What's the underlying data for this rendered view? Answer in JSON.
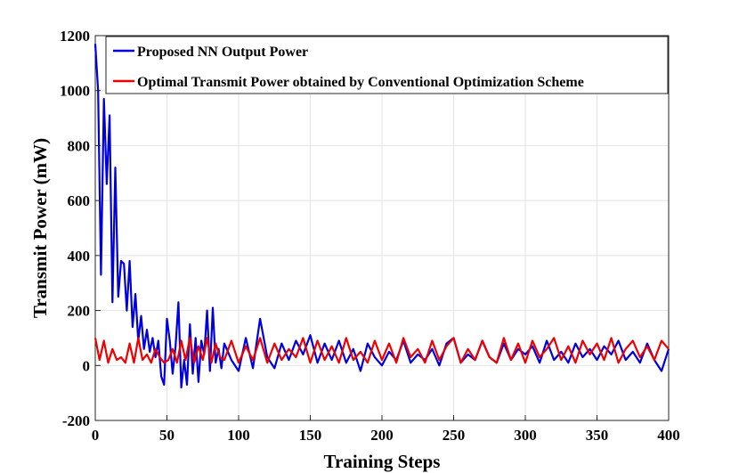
{
  "chart_data": {
    "type": "line",
    "title": "",
    "xlabel": "Training Steps",
    "ylabel": "Transmit Power (mW)",
    "xlim": [
      0,
      400
    ],
    "ylim": [
      -200,
      1200
    ],
    "xticks": [
      0,
      50,
      100,
      150,
      200,
      250,
      300,
      350,
      400
    ],
    "yticks": [
      -200,
      0,
      200,
      400,
      600,
      800,
      1000,
      1200
    ],
    "grid": true,
    "legend_position": "top-right",
    "series": [
      {
        "name": "Proposed NN Output Power",
        "color": "#0000dd",
        "x": [
          0,
          2,
          4,
          6,
          8,
          10,
          12,
          14,
          16,
          18,
          20,
          22,
          24,
          26,
          28,
          30,
          32,
          34,
          36,
          38,
          40,
          42,
          44,
          46,
          48,
          50,
          52,
          54,
          56,
          58,
          60,
          62,
          64,
          66,
          68,
          70,
          72,
          74,
          76,
          78,
          80,
          82,
          84,
          86,
          88,
          90,
          95,
          100,
          105,
          110,
          115,
          120,
          125,
          130,
          135,
          140,
          145,
          150,
          155,
          160,
          165,
          170,
          175,
          180,
          185,
          190,
          195,
          200,
          205,
          210,
          215,
          220,
          225,
          230,
          235,
          240,
          245,
          250,
          255,
          260,
          265,
          270,
          275,
          280,
          285,
          290,
          295,
          300,
          305,
          310,
          315,
          320,
          325,
          330,
          335,
          340,
          345,
          350,
          355,
          360,
          365,
          370,
          375,
          380,
          385,
          390,
          395,
          400
        ],
        "y": [
          1170,
          1000,
          330,
          970,
          660,
          910,
          230,
          720,
          250,
          380,
          370,
          200,
          380,
          140,
          260,
          90,
          180,
          60,
          130,
          50,
          100,
          30,
          90,
          -40,
          -70,
          170,
          90,
          -30,
          70,
          230,
          -80,
          20,
          -70,
          150,
          -30,
          100,
          -60,
          90,
          40,
          200,
          -20,
          210,
          10,
          60,
          -10,
          80,
          20,
          -20,
          100,
          -10,
          170,
          30,
          -10,
          80,
          20,
          90,
          40,
          110,
          10,
          80,
          20,
          90,
          10,
          60,
          -20,
          80,
          30,
          0,
          50,
          20,
          90,
          10,
          40,
          20,
          60,
          0,
          80,
          100,
          10,
          40,
          20,
          90,
          30,
          10,
          80,
          20,
          60,
          40,
          70,
          10,
          90,
          20,
          50,
          10,
          80,
          30,
          60,
          20,
          70,
          40,
          90,
          20,
          50,
          10,
          80,
          20,
          -20,
          60
        ]
      },
      {
        "name": "Optimal Transmit Power obtained by Conventional Optimization Scheme",
        "color": "#ee0000",
        "x": [
          0,
          3,
          6,
          9,
          12,
          15,
          18,
          21,
          24,
          27,
          30,
          33,
          36,
          39,
          42,
          45,
          48,
          51,
          54,
          57,
          60,
          63,
          66,
          69,
          72,
          75,
          78,
          81,
          84,
          87,
          90,
          95,
          100,
          105,
          110,
          115,
          120,
          125,
          130,
          135,
          140,
          145,
          150,
          155,
          160,
          165,
          170,
          175,
          180,
          185,
          190,
          195,
          200,
          205,
          210,
          215,
          220,
          225,
          230,
          235,
          240,
          245,
          250,
          255,
          260,
          265,
          270,
          275,
          280,
          285,
          290,
          295,
          300,
          305,
          310,
          315,
          320,
          325,
          330,
          335,
          340,
          345,
          350,
          355,
          360,
          365,
          370,
          375,
          380,
          385,
          390,
          395,
          400
        ],
        "y": [
          100,
          20,
          90,
          10,
          60,
          20,
          30,
          10,
          80,
          10,
          100,
          20,
          40,
          10,
          60,
          30,
          10,
          20,
          60,
          10,
          90,
          20,
          100,
          10,
          70,
          20,
          100,
          10,
          80,
          30,
          20,
          90,
          10,
          70,
          20,
          100,
          10,
          80,
          20,
          60,
          30,
          100,
          10,
          90,
          20,
          70,
          10,
          100,
          20,
          50,
          10,
          90,
          20,
          80,
          10,
          100,
          30,
          60,
          10,
          90,
          20,
          70,
          100,
          10,
          60,
          20,
          90,
          30,
          10,
          100,
          20,
          80,
          10,
          90,
          30,
          60,
          100,
          20,
          70,
          10,
          90,
          40,
          80,
          20,
          100,
          10,
          60,
          90,
          30,
          70,
          20,
          90,
          60
        ]
      }
    ]
  }
}
